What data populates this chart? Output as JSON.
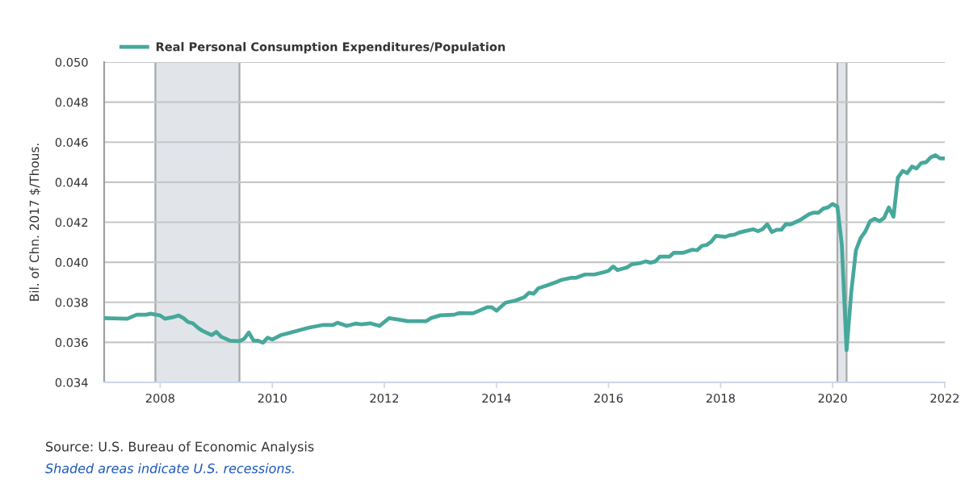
{
  "chart_data": {
    "type": "line",
    "ylabel": "Bil. of Chn. 2017 $/Thous.",
    "annotations": [
      "Source: U.S. Bureau of Economic Analysis",
      "Shaded areas indicate U.S. recessions."
    ],
    "x": [
      "2007-01",
      "2007-06",
      "2007-08",
      "2007-10",
      "2007-11",
      "2008-01",
      "2008-02",
      "2008-04",
      "2008-05",
      "2008-06",
      "2008-07",
      "2008-08",
      "2008-09",
      "2008-10",
      "2008-12",
      "2009-01",
      "2009-02",
      "2009-04",
      "2009-06",
      "2009-07",
      "2009-08",
      "2009-09",
      "2009-10",
      "2009-11",
      "2009-12",
      "2010-01",
      "2010-03",
      "2010-05",
      "2010-08",
      "2010-09",
      "2010-12",
      "2011-02",
      "2011-03",
      "2011-05",
      "2011-07",
      "2011-08",
      "2011-10",
      "2011-12",
      "2012-02",
      "2012-04",
      "2012-06",
      "2012-10",
      "2012-11",
      "2013-01",
      "2013-04",
      "2013-05",
      "2013-08",
      "2013-09",
      "2013-11",
      "2013-12",
      "2014-01",
      "2014-03",
      "2014-05",
      "2014-07",
      "2014-08",
      "2014-09",
      "2014-10",
      "2014-12",
      "2015-02",
      "2015-03",
      "2015-05",
      "2015-06",
      "2015-08",
      "2015-10",
      "2015-12",
      "2016-01",
      "2016-02",
      "2016-03",
      "2016-05",
      "2016-06",
      "2016-08",
      "2016-09",
      "2016-10",
      "2016-11",
      "2016-12",
      "2017-02",
      "2017-03",
      "2017-05",
      "2017-07",
      "2017-08",
      "2017-09",
      "2017-10",
      "2017-11",
      "2017-12",
      "2018-02",
      "2018-03",
      "2018-04",
      "2018-05",
      "2018-06",
      "2018-08",
      "2018-09",
      "2018-10",
      "2018-11",
      "2018-12",
      "2019-01",
      "2019-02",
      "2019-03",
      "2019-04",
      "2019-06",
      "2019-08",
      "2019-09",
      "2019-10",
      "2019-11",
      "2019-12",
      "2020-01",
      "2020-02",
      "2020-03",
      "2020-04",
      "2020-05",
      "2020-06",
      "2020-07",
      "2020-08",
      "2020-09",
      "2020-10",
      "2020-11",
      "2020-12",
      "2021-01",
      "2021-02",
      "2021-03",
      "2021-04",
      "2021-05",
      "2021-06",
      "2021-07",
      "2021-08",
      "2021-09",
      "2021-10",
      "2021-11",
      "2021-12",
      "2022-01"
    ],
    "series": [
      {
        "name": "Real Personal Consumption Expenditures/Population",
        "color": "#46a89b",
        "values": [
          0.03721,
          0.03718,
          0.03738,
          0.03738,
          0.03743,
          0.03734,
          0.03718,
          0.03727,
          0.03734,
          0.03721,
          0.03701,
          0.03695,
          0.03674,
          0.03658,
          0.03636,
          0.03652,
          0.03628,
          0.03608,
          0.03606,
          0.03617,
          0.03649,
          0.03608,
          0.03608,
          0.03598,
          0.03623,
          0.03614,
          0.03637,
          0.03649,
          0.03668,
          0.03674,
          0.03687,
          0.03687,
          0.03698,
          0.03682,
          0.03694,
          0.0369,
          0.03695,
          0.03682,
          0.03721,
          0.03714,
          0.03706,
          0.03706,
          0.03721,
          0.03735,
          0.03738,
          0.03746,
          0.03745,
          0.03755,
          0.03775,
          0.03775,
          0.03758,
          0.03798,
          0.03808,
          0.03825,
          0.03848,
          0.03843,
          0.0387,
          0.03886,
          0.03903,
          0.03912,
          0.03922,
          0.03922,
          0.03939,
          0.03939,
          0.0395,
          0.03957,
          0.03979,
          0.03961,
          0.03974,
          0.0399,
          0.03997,
          0.04005,
          0.03998,
          0.04004,
          0.04028,
          0.04028,
          0.04047,
          0.04047,
          0.04063,
          0.0406,
          0.04082,
          0.04086,
          0.04103,
          0.04132,
          0.04127,
          0.04135,
          0.04138,
          0.04148,
          0.04154,
          0.04165,
          0.04155,
          0.04165,
          0.0419,
          0.04151,
          0.04162,
          0.04163,
          0.0419,
          0.04189,
          0.0421,
          0.0424,
          0.04248,
          0.04248,
          0.04268,
          0.04274,
          0.04291,
          0.04278,
          0.04087,
          0.03561,
          0.03847,
          0.0406,
          0.0412,
          0.04154,
          0.04205,
          0.04218,
          0.04205,
          0.04221,
          0.04274,
          0.04228,
          0.04422,
          0.04456,
          0.04445,
          0.04478,
          0.04469,
          0.04496,
          0.045,
          0.04524,
          0.04535,
          0.04519,
          0.04519
        ]
      }
    ],
    "xlim": [
      "2007-01-01",
      "2022-01-01"
    ],
    "xticks": [
      {
        "value": "2008-01-01",
        "label": "2008"
      },
      {
        "value": "2010-01-01",
        "label": "2010"
      },
      {
        "value": "2012-01-01",
        "label": "2012"
      },
      {
        "value": "2014-01-01",
        "label": "2014"
      },
      {
        "value": "2016-01-01",
        "label": "2016"
      },
      {
        "value": "2018-01-01",
        "label": "2018"
      },
      {
        "value": "2020-01-01",
        "label": "2020"
      },
      {
        "value": "2022-01-01",
        "label": "2022"
      }
    ],
    "ylim": [
      0.034,
      0.05
    ],
    "yticks": [
      0.034,
      0.036,
      0.038,
      {
        "value": 0.04,
        "label": "0.040"
      },
      0.042,
      0.044,
      0.046,
      0.048,
      {
        "value": 0.05,
        "label": "0.050"
      }
    ],
    "bands": [
      {
        "axis": "x",
        "from": "2007-12-01",
        "to": "2009-06-01",
        "color": "#e1e5ea"
      },
      {
        "axis": "x",
        "from": "2020-02-01",
        "to": "2020-04-01",
        "color": "#e1e5ea"
      }
    ],
    "grid": "y",
    "legend": "top left",
    "line_style": "solid"
  }
}
